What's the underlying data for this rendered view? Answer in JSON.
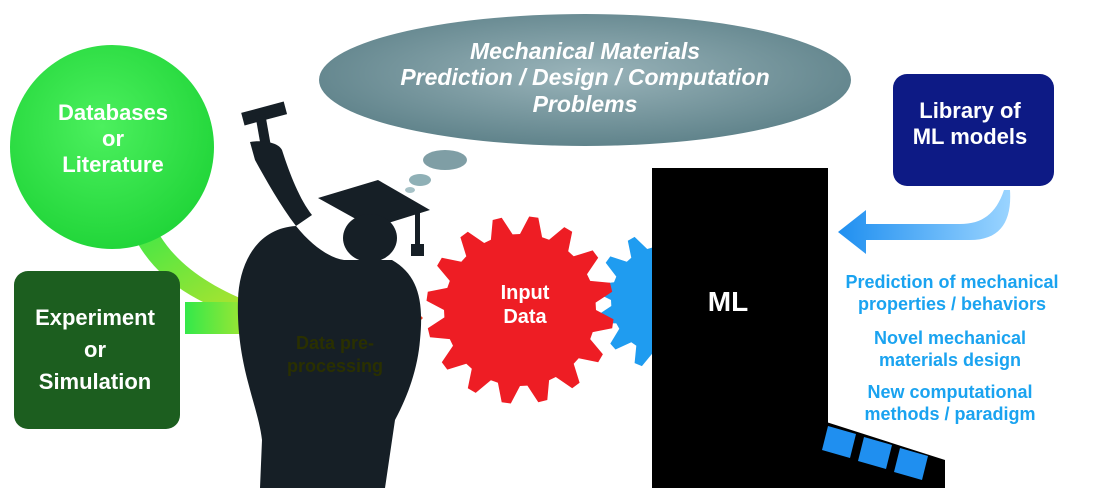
{
  "thought_cloud": {
    "line1": "Mechanical Materials",
    "line2": "Prediction / Design / Computation",
    "line3": "Problems"
  },
  "databases_bubble": {
    "line1": "Databases",
    "line2": "or",
    "line3": "Literature"
  },
  "experiment_box": {
    "line1": "Experiment",
    "line2": "or",
    "line3": "Simulation"
  },
  "preprocessing_label": {
    "line1": "Data pre-",
    "line2": "processing"
  },
  "input_gear": {
    "line1": "Input",
    "line2": "Data"
  },
  "ml_machine": {
    "label": "ML"
  },
  "library_box": {
    "line1": "Library of",
    "line2": "ML models"
  },
  "outputs": [
    {
      "line1": "Prediction of mechanical",
      "line2": "properties / behaviors"
    },
    {
      "line1": "Novel mechanical",
      "line2": "materials design"
    },
    {
      "line1": "New computational",
      "line2": "methods / paradigm"
    }
  ],
  "colors": {
    "databases_green": "#33e84a",
    "experiment_green": "#1c5e1f",
    "input_red": "#ee1d24",
    "gear_blue": "#1f9cf0",
    "library_navy": "#0d1a85",
    "output_blue": "#1aa3f0",
    "cloud_gray": "#6f9299"
  }
}
